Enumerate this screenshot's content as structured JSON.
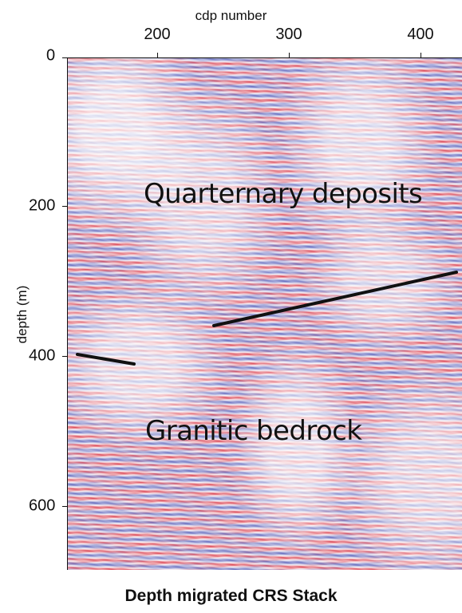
{
  "figure": {
    "top_axis_label": "cdp number",
    "x_ticks": [
      "200",
      "300",
      "400"
    ],
    "y_axis_label": "depth (m)",
    "y_ticks": [
      "0",
      "200",
      "400",
      "600"
    ],
    "annotations": {
      "upper": "Quarternary deposits",
      "lower": "Granitic bedrock"
    },
    "caption": "Depth migrated CRS Stack",
    "colors": {
      "red": "#d32234",
      "blue": "#3f49af",
      "black": "#111111"
    }
  }
}
